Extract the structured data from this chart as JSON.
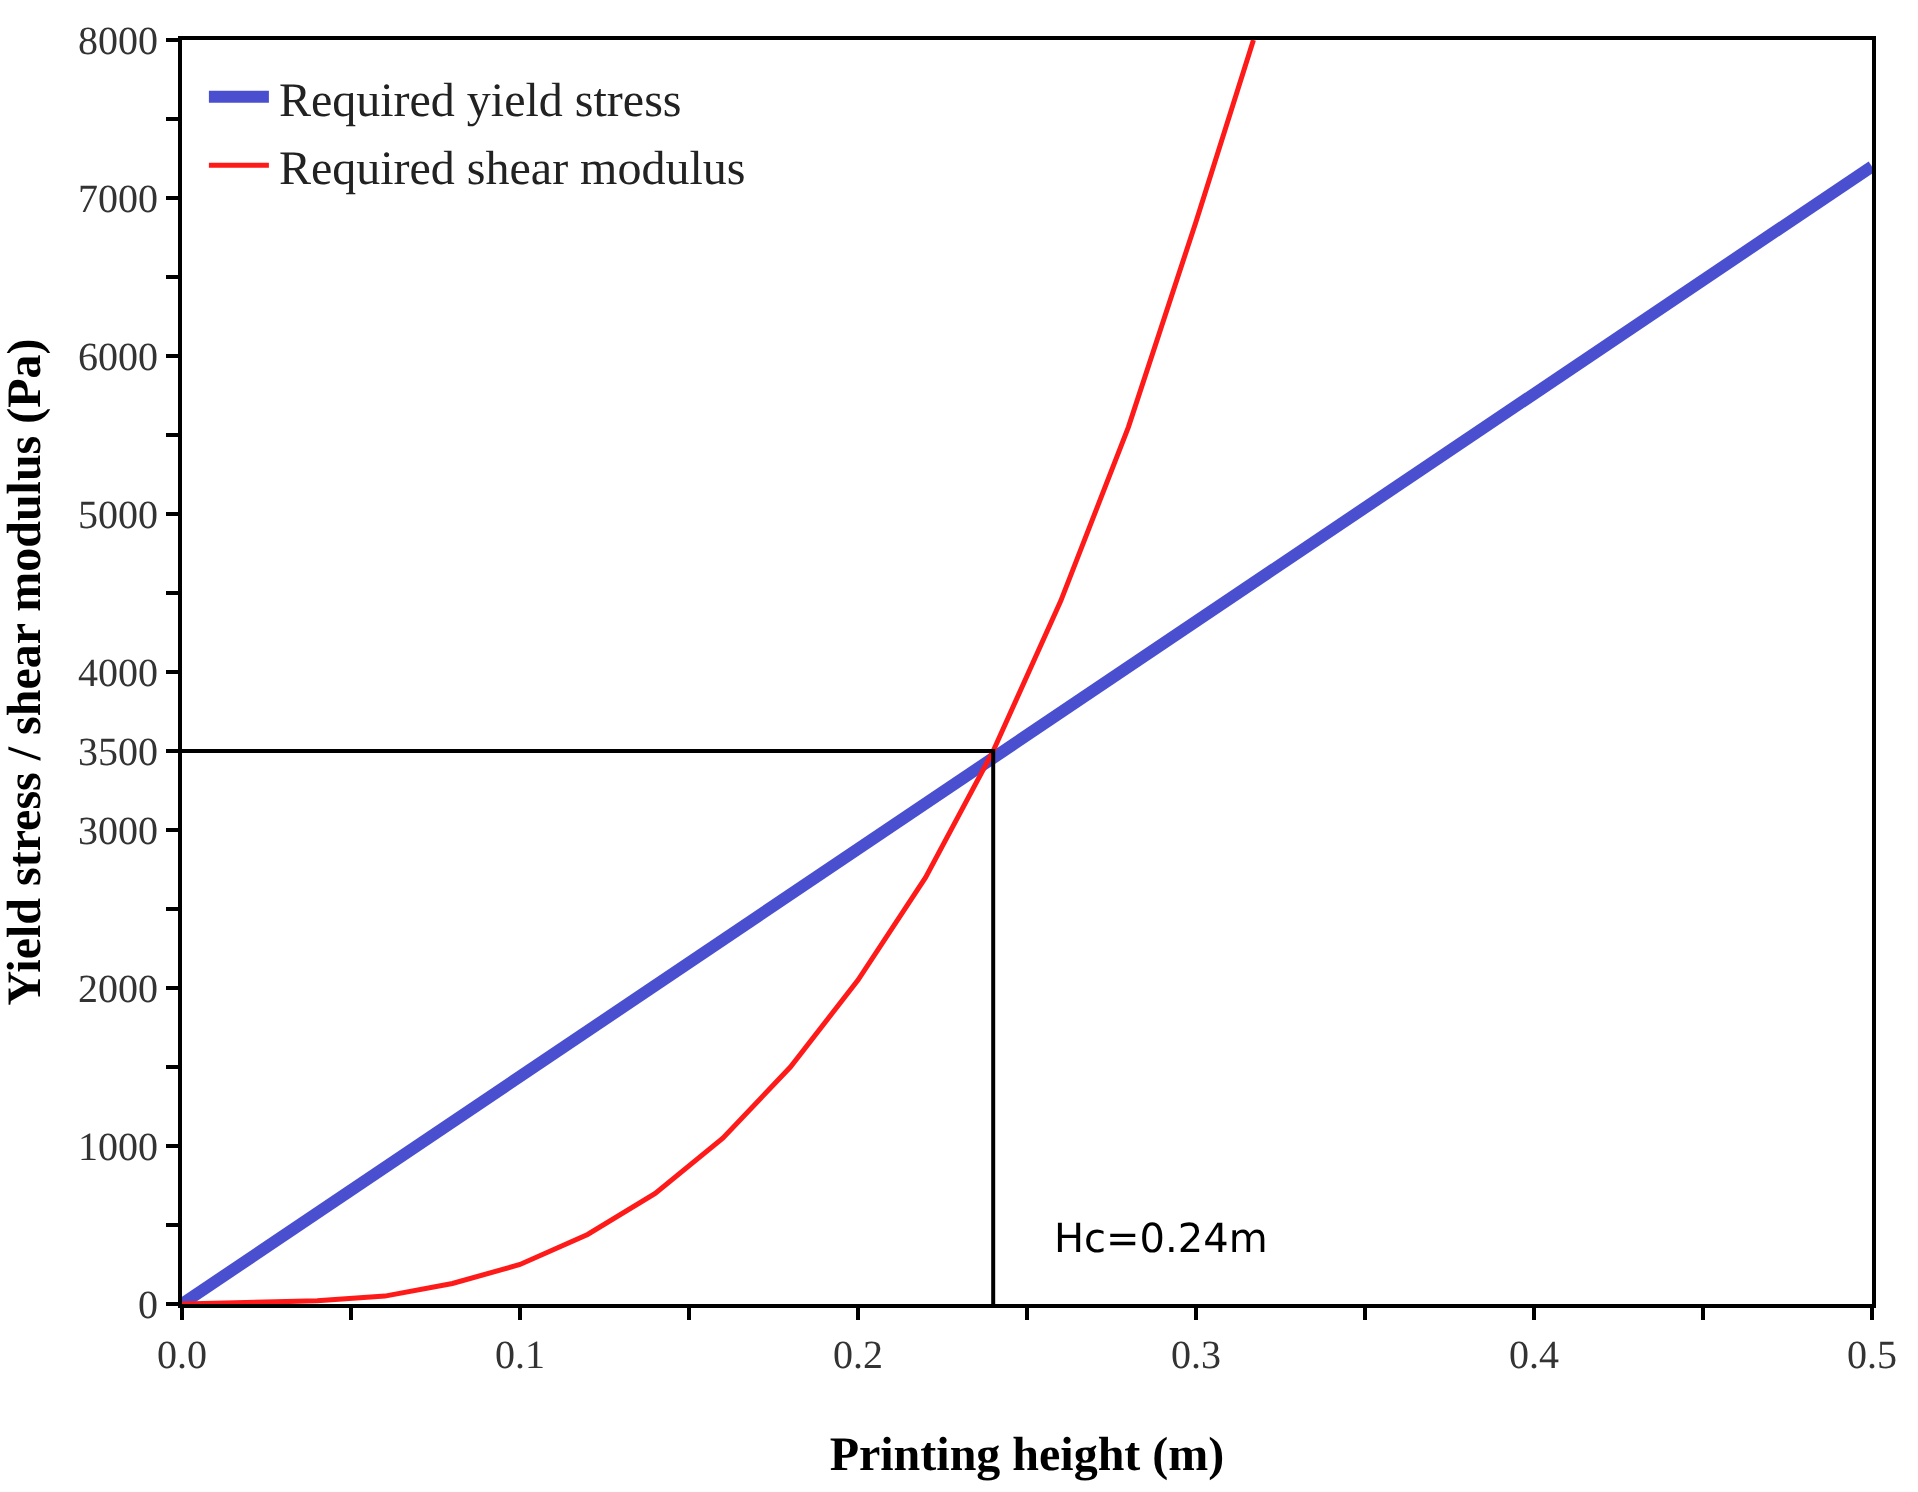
{
  "chart_data": {
    "type": "line",
    "xlabel": "Printing height (m)",
    "ylabel": "Yield stress / shear modulus (Pa)",
    "xlim": [
      0,
      0.5
    ],
    "ylim": [
      0,
      8000
    ],
    "xticks": [
      {
        "value": 0,
        "label": "0.0"
      },
      {
        "value": 0.05,
        "label": null
      },
      0.1,
      {
        "value": 0.15,
        "label": null
      },
      0.2,
      {
        "value": 0.25,
        "label": null
      },
      0.3,
      {
        "value": 0.35,
        "label": null
      },
      0.4,
      {
        "value": 0.45,
        "label": null
      },
      0.5
    ],
    "yticks": [
      0,
      {
        "value": 500,
        "label": null
      },
      1000,
      {
        "value": 1500,
        "label": null
      },
      2000,
      {
        "value": 2500,
        "label": null
      },
      3000,
      3500,
      4000,
      {
        "value": 4500,
        "label": null
      },
      5000,
      {
        "value": 5500,
        "label": null
      },
      6000,
      {
        "value": 6500,
        "label": null
      },
      7000,
      {
        "value": 7500,
        "label": null
      },
      8000
    ],
    "legend": "top left",
    "marker": "none",
    "line_style": "solid",
    "series": [
      {
        "name": "Required yield stress",
        "color": "#4a4fcf",
        "x": [
          0,
          0.5
        ],
        "values": [
          0,
          7200
        ]
      },
      {
        "name": "Required shear modulus",
        "color": "#ff1a1a",
        "x": [
          0,
          0.04,
          0.06,
          0.08,
          0.1,
          0.12,
          0.14,
          0.16,
          0.18,
          0.2,
          0.22,
          0.24,
          0.26,
          0.28,
          0.3,
          0.317
        ],
        "values": [
          0,
          20,
          50,
          130,
          250,
          440,
          700,
          1050,
          1500,
          2050,
          2700,
          3500,
          4450,
          5550,
          6850,
          8000
        ]
      },
      {
        "color": "#000000",
        "x": [
          0,
          0.24,
          0.24
        ],
        "values": [
          3500,
          3500,
          0
        ]
      }
    ],
    "annotations": [
      "Hc=0.24m"
    ]
  }
}
